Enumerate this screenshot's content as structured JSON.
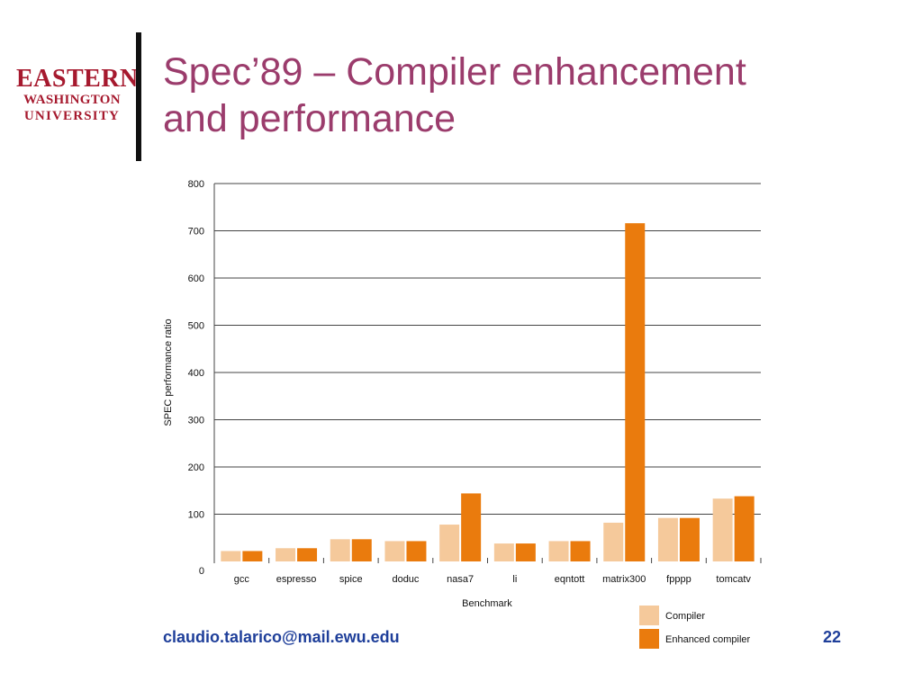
{
  "logo": {
    "line1": "EASTERN",
    "line2": "WASHINGTON",
    "line3": "UNIVERSITY"
  },
  "title_line1": "Spec’89 – Compiler enhancement",
  "title_line2": "and performance",
  "footer": {
    "email": "claudio.talarico@mail.ewu.edu",
    "page_number": "22"
  },
  "colors": {
    "title": "#9b3c6c",
    "compiler": "#f5c99b",
    "enhanced": "#ea7b0d",
    "footer": "#1f3f9a",
    "logo": "#a6192e"
  },
  "chart_data": {
    "type": "bar",
    "categories": [
      "gcc",
      "espresso",
      "spice",
      "doduc",
      "nasa7",
      "li",
      "eqntott",
      "matrix300",
      "fpppp",
      "tomcatv"
    ],
    "series": [
      {
        "name": "Compiler",
        "values": [
          22,
          28,
          47,
          43,
          78,
          38,
          43,
          82,
          92,
          133
        ]
      },
      {
        "name": "Enhanced compiler",
        "values": [
          22,
          28,
          47,
          43,
          144,
          38,
          43,
          716,
          92,
          138
        ]
      }
    ],
    "title": "",
    "xlabel": "Benchmark",
    "ylabel": "SPEC performance ratio",
    "ylim": [
      0,
      800
    ],
    "yticks": [
      0,
      100,
      200,
      300,
      400,
      500,
      600,
      700,
      800
    ],
    "grid": true,
    "legend_position": "bottom-right"
  }
}
